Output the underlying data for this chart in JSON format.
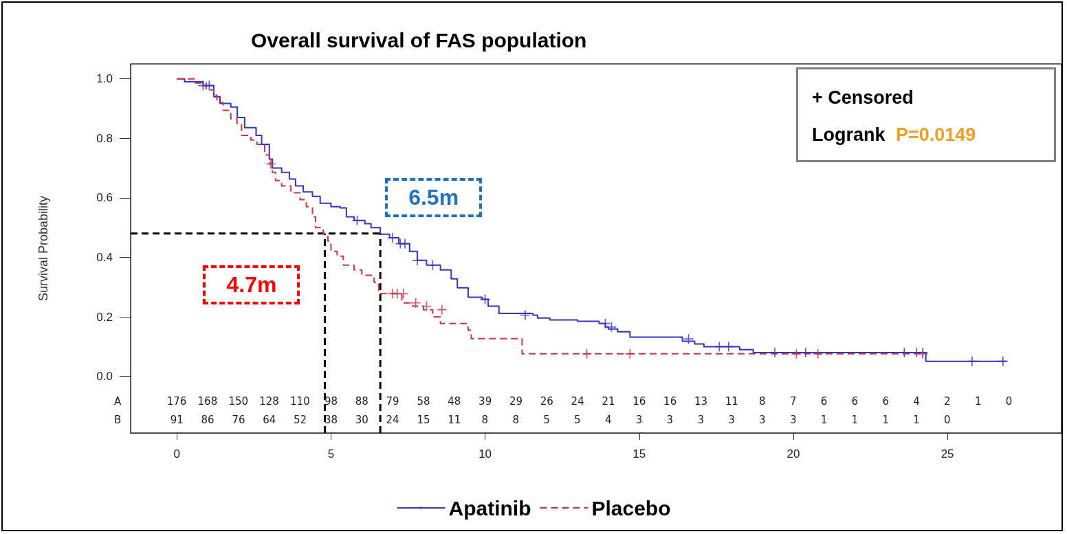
{
  "chart_data": {
    "type": "step",
    "title": "Overall survival of FAS population",
    "ylabel": "Survival Probability",
    "xlim": [
      -1.5,
      28.7
    ],
    "xticks": [
      0,
      5,
      10,
      15,
      20,
      25
    ],
    "ylim": [
      -0.19,
      1.05
    ],
    "yticks": [
      {
        "value": 0,
        "label": "0.0"
      },
      {
        "value": 0.2,
        "label": "0.2"
      },
      {
        "value": 0.4,
        "label": "0.4"
      },
      {
        "value": 0.6,
        "label": "0.6"
      },
      {
        "value": 0.8,
        "label": "0.8"
      },
      {
        "value": 1,
        "label": "1.0"
      }
    ],
    "grid": false,
    "legend": "bottom",
    "marker": "none",
    "series": [
      {
        "name": "Apatinib",
        "color": "#3333cc",
        "line_style": "solid",
        "x": [
          0,
          0.25,
          0.85,
          1.2,
          1.4,
          1.75,
          1.96,
          2.2,
          2.57,
          2.75,
          3.0,
          3.1,
          3.4,
          3.65,
          3.85,
          4.1,
          4.4,
          4.65,
          5.0,
          5.3,
          5.5,
          5.75,
          6.1,
          6.3,
          6.6,
          6.9,
          7.2,
          7.55,
          7.8,
          8.1,
          8.55,
          8.9,
          9.1,
          9.45,
          9.9,
          10.1,
          10.45,
          11.55,
          11.7,
          12.1,
          13.0,
          13.7,
          13.9,
          14.0,
          14.3,
          14.7,
          16.4,
          16.8,
          17.1,
          18.26,
          18.7,
          24.3,
          26.9
        ],
        "values": [
          1.0,
          0.99,
          0.977,
          0.94,
          0.917,
          0.905,
          0.87,
          0.836,
          0.81,
          0.78,
          0.73,
          0.7,
          0.686,
          0.663,
          0.64,
          0.62,
          0.605,
          0.582,
          0.57,
          0.566,
          0.536,
          0.524,
          0.513,
          0.5,
          0.478,
          0.466,
          0.446,
          0.42,
          0.39,
          0.374,
          0.358,
          0.328,
          0.298,
          0.266,
          0.259,
          0.236,
          0.212,
          0.206,
          0.196,
          0.19,
          0.185,
          0.178,
          0.166,
          0.159,
          0.15,
          0.132,
          0.118,
          0.109,
          0.1,
          0.09,
          0.08,
          0.051,
          0.051
        ]
      },
      {
        "name": "Placebo",
        "color": "#cc3344",
        "line_style": "dashed",
        "x": [
          0,
          0.6,
          0.95,
          1.2,
          1.3,
          1.5,
          1.75,
          1.95,
          2.1,
          2.4,
          2.6,
          2.85,
          3.0,
          3.1,
          3.2,
          3.4,
          3.7,
          4.0,
          4.2,
          4.4,
          4.5,
          4.75,
          4.9,
          5.0,
          5.2,
          5.4,
          5.75,
          6.0,
          6.4,
          6.55,
          7.3,
          7.65,
          8.0,
          8.3,
          8.55,
          9.45,
          9.55,
          11.2,
          24.3
        ],
        "values": [
          1.0,
          0.986,
          0.963,
          0.945,
          0.92,
          0.894,
          0.866,
          0.85,
          0.81,
          0.794,
          0.78,
          0.744,
          0.714,
          0.686,
          0.658,
          0.64,
          0.617,
          0.594,
          0.57,
          0.536,
          0.5,
          0.478,
          0.455,
          0.42,
          0.404,
          0.374,
          0.358,
          0.34,
          0.316,
          0.278,
          0.247,
          0.236,
          0.224,
          0.2,
          0.178,
          0.155,
          0.127,
          0.076,
          0.076
        ]
      },
      {
        "type": "scatter",
        "marker": "cross",
        "color": "#3333cc",
        "x": [
          0.85,
          1.05,
          5.85,
          7.0,
          7.25,
          7.4,
          7.8,
          8.3,
          10.0,
          11.3,
          13.9,
          14.1,
          16.6,
          17.6,
          17.9,
          19.4,
          20.4,
          23.6,
          24.0,
          24.2,
          25.8,
          26.8
        ],
        "values": [
          0.977,
          0.977,
          0.524,
          0.466,
          0.446,
          0.446,
          0.39,
          0.374,
          0.259,
          0.206,
          0.178,
          0.166,
          0.126,
          0.1,
          0.1,
          0.08,
          0.08,
          0.08,
          0.08,
          0.08,
          0.051,
          0.051
        ]
      },
      {
        "type": "scatter",
        "marker": "cross",
        "color": "#cc3344",
        "x": [
          3.05,
          7.0,
          7.15,
          7.35,
          7.75,
          8.1,
          8.6,
          13.3,
          14.7,
          20.1,
          20.8,
          24.2
        ],
        "values": [
          0.714,
          0.278,
          0.278,
          0.278,
          0.247,
          0.236,
          0.224,
          0.076,
          0.076,
          0.076,
          0.076,
          0.076
        ]
      }
    ],
    "ref_lines": [
      {
        "axis": "y",
        "value": 0.48,
        "color": "#000000",
        "line_style": "dashed"
      },
      {
        "axis": "x",
        "value": 4.8,
        "color": "#000000",
        "line_style": "dashed"
      },
      {
        "axis": "x",
        "value": 6.6,
        "color": "#000000",
        "line_style": "dashed"
      }
    ],
    "annotations": [
      "+ Censored",
      "Logrank P=0.0149",
      {
        "text": "6.5m",
        "x": 6.5,
        "y": 0.5
      },
      {
        "text": "4.7m",
        "x": 4.7,
        "y": 0.5
      },
      "A 176 168 150 128 110 98 88 79 58 48 39 29 26 24 21 16 16 13 11 8 7 6 6 6 4 2 1 0",
      "B 91 86 76 64 52 38 30 24 15 11 8 8 5 5 4 3 3 3 3 3 3 1 1 1 1 0"
    ]
  }
}
